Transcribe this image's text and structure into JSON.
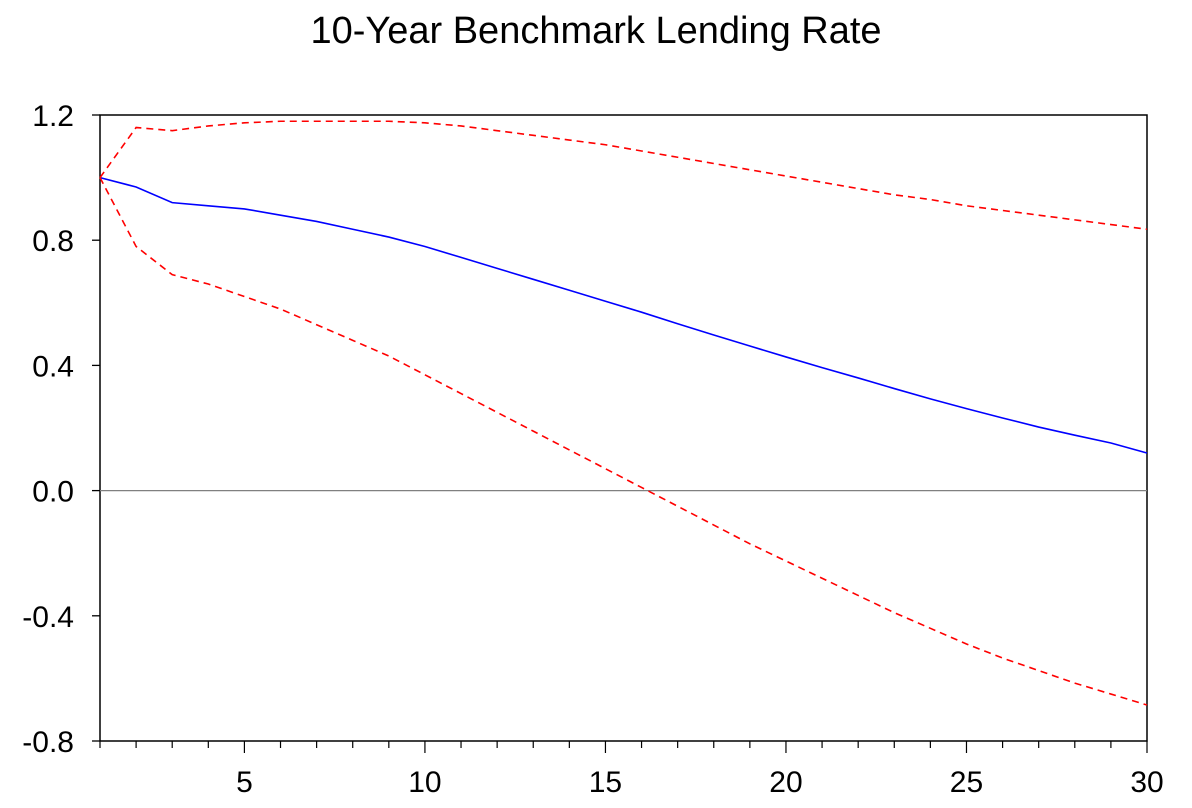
{
  "chart_data": {
    "type": "line",
    "title": "10-Year Benchmark Lending Rate",
    "xlabel": "",
    "ylabel": "",
    "xlim": [
      1,
      30
    ],
    "ylim": [
      -0.8,
      1.2
    ],
    "x_ticks": [
      5,
      10,
      15,
      20,
      25,
      30
    ],
    "y_ticks": [
      -0.8,
      -0.4,
      0.0,
      0.4,
      0.8,
      1.2
    ],
    "y_tick_labels": [
      "-0.8",
      "-0.4",
      "0.0",
      "0.4",
      "0.8",
      "1.2"
    ],
    "x_tick_labels": [
      "5",
      "10",
      "15",
      "20",
      "25",
      "30"
    ],
    "x": [
      1,
      2,
      3,
      4,
      5,
      6,
      7,
      8,
      9,
      10,
      11,
      12,
      13,
      14,
      15,
      16,
      17,
      18,
      19,
      20,
      21,
      22,
      23,
      24,
      25,
      26,
      27,
      28,
      29,
      30
    ],
    "zero_line": true,
    "grid": false,
    "legend": "none",
    "series": [
      {
        "role": "response",
        "color": "#0000ff",
        "style": "solid",
        "values": [
          1.0,
          0.97,
          0.92,
          0.91,
          0.9,
          0.88,
          0.86,
          0.835,
          0.81,
          0.78,
          0.745,
          0.71,
          0.675,
          0.64,
          0.605,
          0.57,
          0.533,
          0.497,
          0.462,
          0.427,
          0.393,
          0.36,
          0.326,
          0.293,
          0.262,
          0.232,
          0.203,
          0.177,
          0.152,
          0.12
        ]
      },
      {
        "role": "upper-band",
        "color": "#ff0000",
        "style": "dashed",
        "values": [
          1.0,
          1.16,
          1.15,
          1.165,
          1.175,
          1.18,
          1.18,
          1.18,
          1.18,
          1.175,
          1.165,
          1.15,
          1.135,
          1.12,
          1.105,
          1.085,
          1.065,
          1.045,
          1.025,
          1.005,
          0.985,
          0.965,
          0.945,
          0.93,
          0.91,
          0.895,
          0.88,
          0.865,
          0.85,
          0.835
        ]
      },
      {
        "role": "lower-band",
        "color": "#ff0000",
        "style": "dashed",
        "values": [
          1.0,
          0.78,
          0.69,
          0.66,
          0.62,
          0.58,
          0.53,
          0.48,
          0.43,
          0.37,
          0.31,
          0.25,
          0.19,
          0.13,
          0.07,
          0.01,
          -0.05,
          -0.11,
          -0.17,
          -0.225,
          -0.28,
          -0.335,
          -0.39,
          -0.44,
          -0.49,
          -0.535,
          -0.575,
          -0.615,
          -0.65,
          -0.685
        ]
      }
    ]
  }
}
